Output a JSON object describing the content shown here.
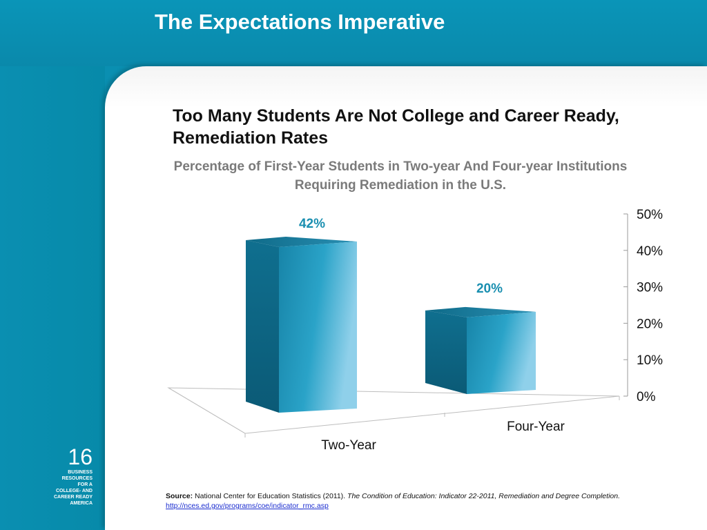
{
  "slide": {
    "title": "The Expectations Imperative",
    "page_number": "16",
    "org_lines": [
      "BUSINESS",
      "RESOURCES",
      "FOR A",
      "COLLEGE- AND",
      "CAREER READY",
      "AMERICA"
    ]
  },
  "colors": {
    "brand_teal": "#0a8fb1",
    "bar_front": "#1b8fb3",
    "label_teal": "#1a8fb0"
  },
  "source": {
    "label": "Source:",
    "text": "National Center for Education Statistics (2011).",
    "title": "The Condition of Education: Indicator 22-2011, Remediation and Degree Completion.",
    "link": "http://nces.ed.gov/programs/coe/indicator_rmc.asp"
  },
  "chart_data": {
    "type": "bar",
    "title": "Too Many Students Are Not College and Career Ready, Remediation Rates",
    "subtitle": "Percentage of First-Year Students in Two-year And Four-year Institutions Requiring Remediation in the U.S.",
    "categories": [
      "Two-Year",
      "Four-Year"
    ],
    "values": [
      42,
      20
    ],
    "data_labels": [
      "42%",
      "20%"
    ],
    "ylim": [
      0,
      50
    ],
    "yticks": [
      0,
      10,
      20,
      30,
      40,
      50
    ],
    "ytick_labels": [
      "0%",
      "10%",
      "20%",
      "30%",
      "40%",
      "50%"
    ],
    "y_axis_side": "right",
    "style": "3d",
    "grid": false,
    "legend": false
  }
}
